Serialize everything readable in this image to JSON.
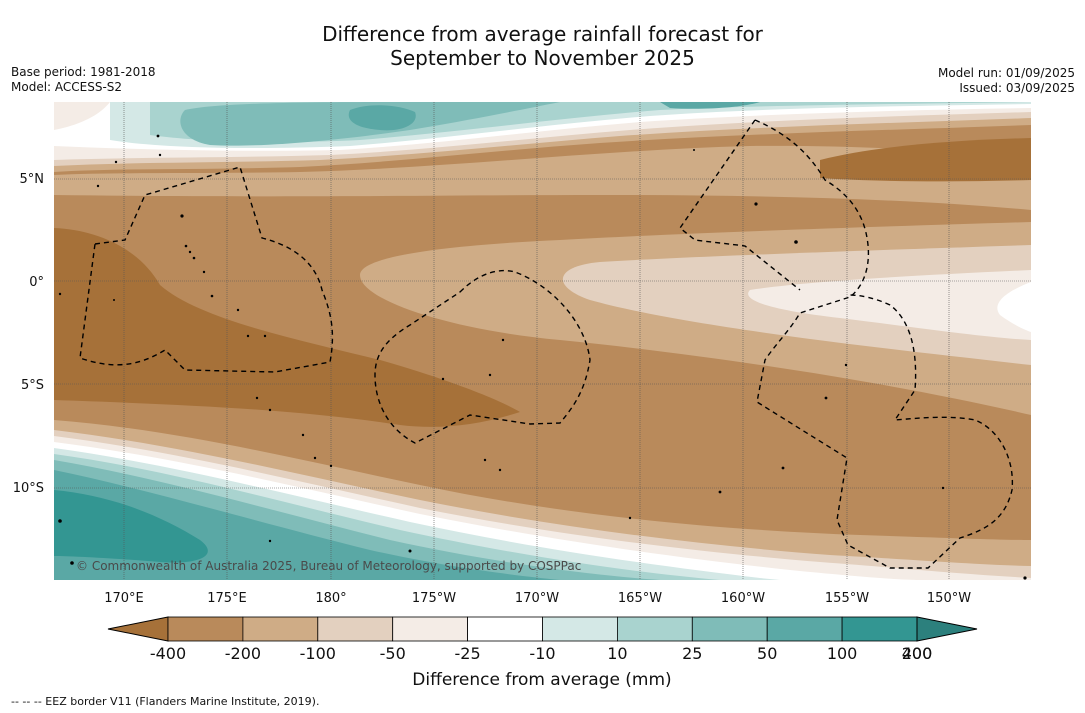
{
  "title_line1": "Difference from average rainfall forecast for",
  "title_line2": "September to November 2025",
  "base_period": "Base period: 1981-2018",
  "model": "Model: ACCESS-S2",
  "model_run": "Model run: 01/09/2025",
  "issued": "Issued: 03/09/2025",
  "credit": "© Commonwealth of Australia 2025, Bureau of Meteorology, supported by COSPPac",
  "footer": "--  --  -- EEZ border V11 (Flanders Marine Institute, 2019).",
  "lon_labels": [
    "170°E",
    "175°E",
    "180°",
    "175°W",
    "170°W",
    "165°W",
    "160°W",
    "155°W",
    "150°W"
  ],
  "lat_labels": [
    "5°N",
    "0°",
    "5°S",
    "10°S"
  ],
  "colorbar": {
    "label": "Difference from average (mm)",
    "ticks": [
      "-400",
      "-200",
      "-100",
      "-50",
      "-25",
      "-10",
      "10",
      "25",
      "50",
      "100",
      "200",
      "400"
    ],
    "colors": [
      "#a67139",
      "#b98a5b",
      "#cfac86",
      "#e3d0bf",
      "#f4ece6",
      "#ffffff",
      "#d4e8e6",
      "#a9d3cf",
      "#7fbcb8",
      "#5aa8a5",
      "#339692",
      "#2c807d"
    ]
  }
}
